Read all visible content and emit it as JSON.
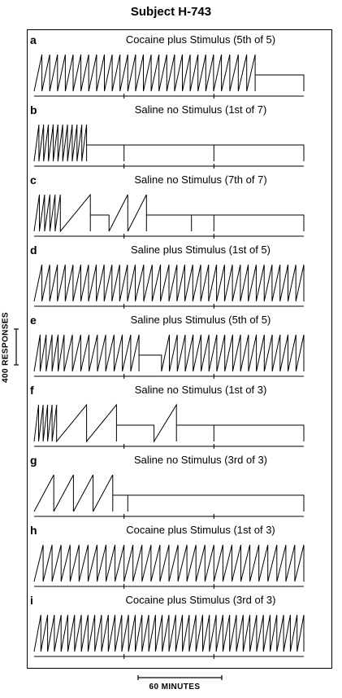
{
  "title": "Subject H-743",
  "chart_data": {
    "type": "line",
    "title": "Subject H-743",
    "ylabel": "400 RESPONSES",
    "xlabel": "60 MINUTES",
    "scale_bars": {
      "y_responses": 400,
      "x_minutes": 60
    },
    "panels": [
      {
        "letter": "a",
        "title": "Cocaine plus Stimulus (5th of 5)",
        "segments": [
          [
            0,
            250,
            24
          ],
          [
            250,
            295,
            4
          ],
          [
            295,
            360,
            0
          ]
        ],
        "reset_to": 0,
        "total_minutes": 360
      },
      {
        "letter": "b",
        "title": "Saline no Stimulus (1st of 7)",
        "segments": [
          [
            0,
            70,
            11
          ],
          [
            70,
            120,
            0
          ],
          [
            120,
            240,
            0
          ],
          [
            240,
            360,
            0
          ]
        ],
        "reset_to": 0,
        "total_minutes": 360
      },
      {
        "letter": "c",
        "title": "Saline no Stimulus (7th of 7)",
        "segments": [
          [
            0,
            35,
            5
          ],
          [
            35,
            75,
            1
          ],
          [
            75,
            100,
            0
          ],
          [
            100,
            150,
            2
          ],
          [
            150,
            210,
            0
          ],
          [
            210,
            240,
            0
          ],
          [
            240,
            360,
            0
          ]
        ],
        "reset_to": 0,
        "total_minutes": 360
      },
      {
        "letter": "d",
        "title": "Saline plus Stimulus (1st of 5)",
        "segments": [
          [
            0,
            135,
            13
          ],
          [
            135,
            180,
            4
          ],
          [
            180,
            360,
            17
          ]
        ],
        "reset_to": 0,
        "total_minutes": 360
      },
      {
        "letter": "e",
        "title": "Saline plus Stimulus (5th of 5)",
        "segments": [
          [
            0,
            40,
            5
          ],
          [
            40,
            140,
            9
          ],
          [
            140,
            170,
            0
          ],
          [
            170,
            360,
            18
          ]
        ],
        "reset_to": 0,
        "total_minutes": 360
      },
      {
        "letter": "f",
        "title": "Saline no Stimulus (1st of 3)",
        "segments": [
          [
            0,
            30,
            5
          ],
          [
            30,
            110,
            2
          ],
          [
            110,
            160,
            0
          ],
          [
            160,
            190,
            1
          ],
          [
            190,
            240,
            0
          ],
          [
            240,
            360,
            0
          ]
        ],
        "reset_to": 0,
        "total_minutes": 360
      },
      {
        "letter": "g",
        "title": "Saline no Stimulus (3rd of 3)",
        "segments": [
          [
            0,
            105,
            4
          ],
          [
            105,
            125,
            0
          ],
          [
            125,
            360,
            0
          ]
        ],
        "reset_to": 0,
        "total_minutes": 360
      },
      {
        "letter": "h",
        "title": "Cocaine plus Stimulus (1st of 3)",
        "segments": [
          [
            0,
            360,
            30
          ]
        ],
        "reset_to": 0,
        "total_minutes": 360
      },
      {
        "letter": "i",
        "title": "Cocaine plus Stimulus (3rd of 3)",
        "segments": [
          [
            0,
            360,
            40
          ]
        ],
        "reset_to": 0,
        "total_minutes": 360
      }
    ],
    "event_marks_minutes": [
      120,
      240
    ]
  }
}
